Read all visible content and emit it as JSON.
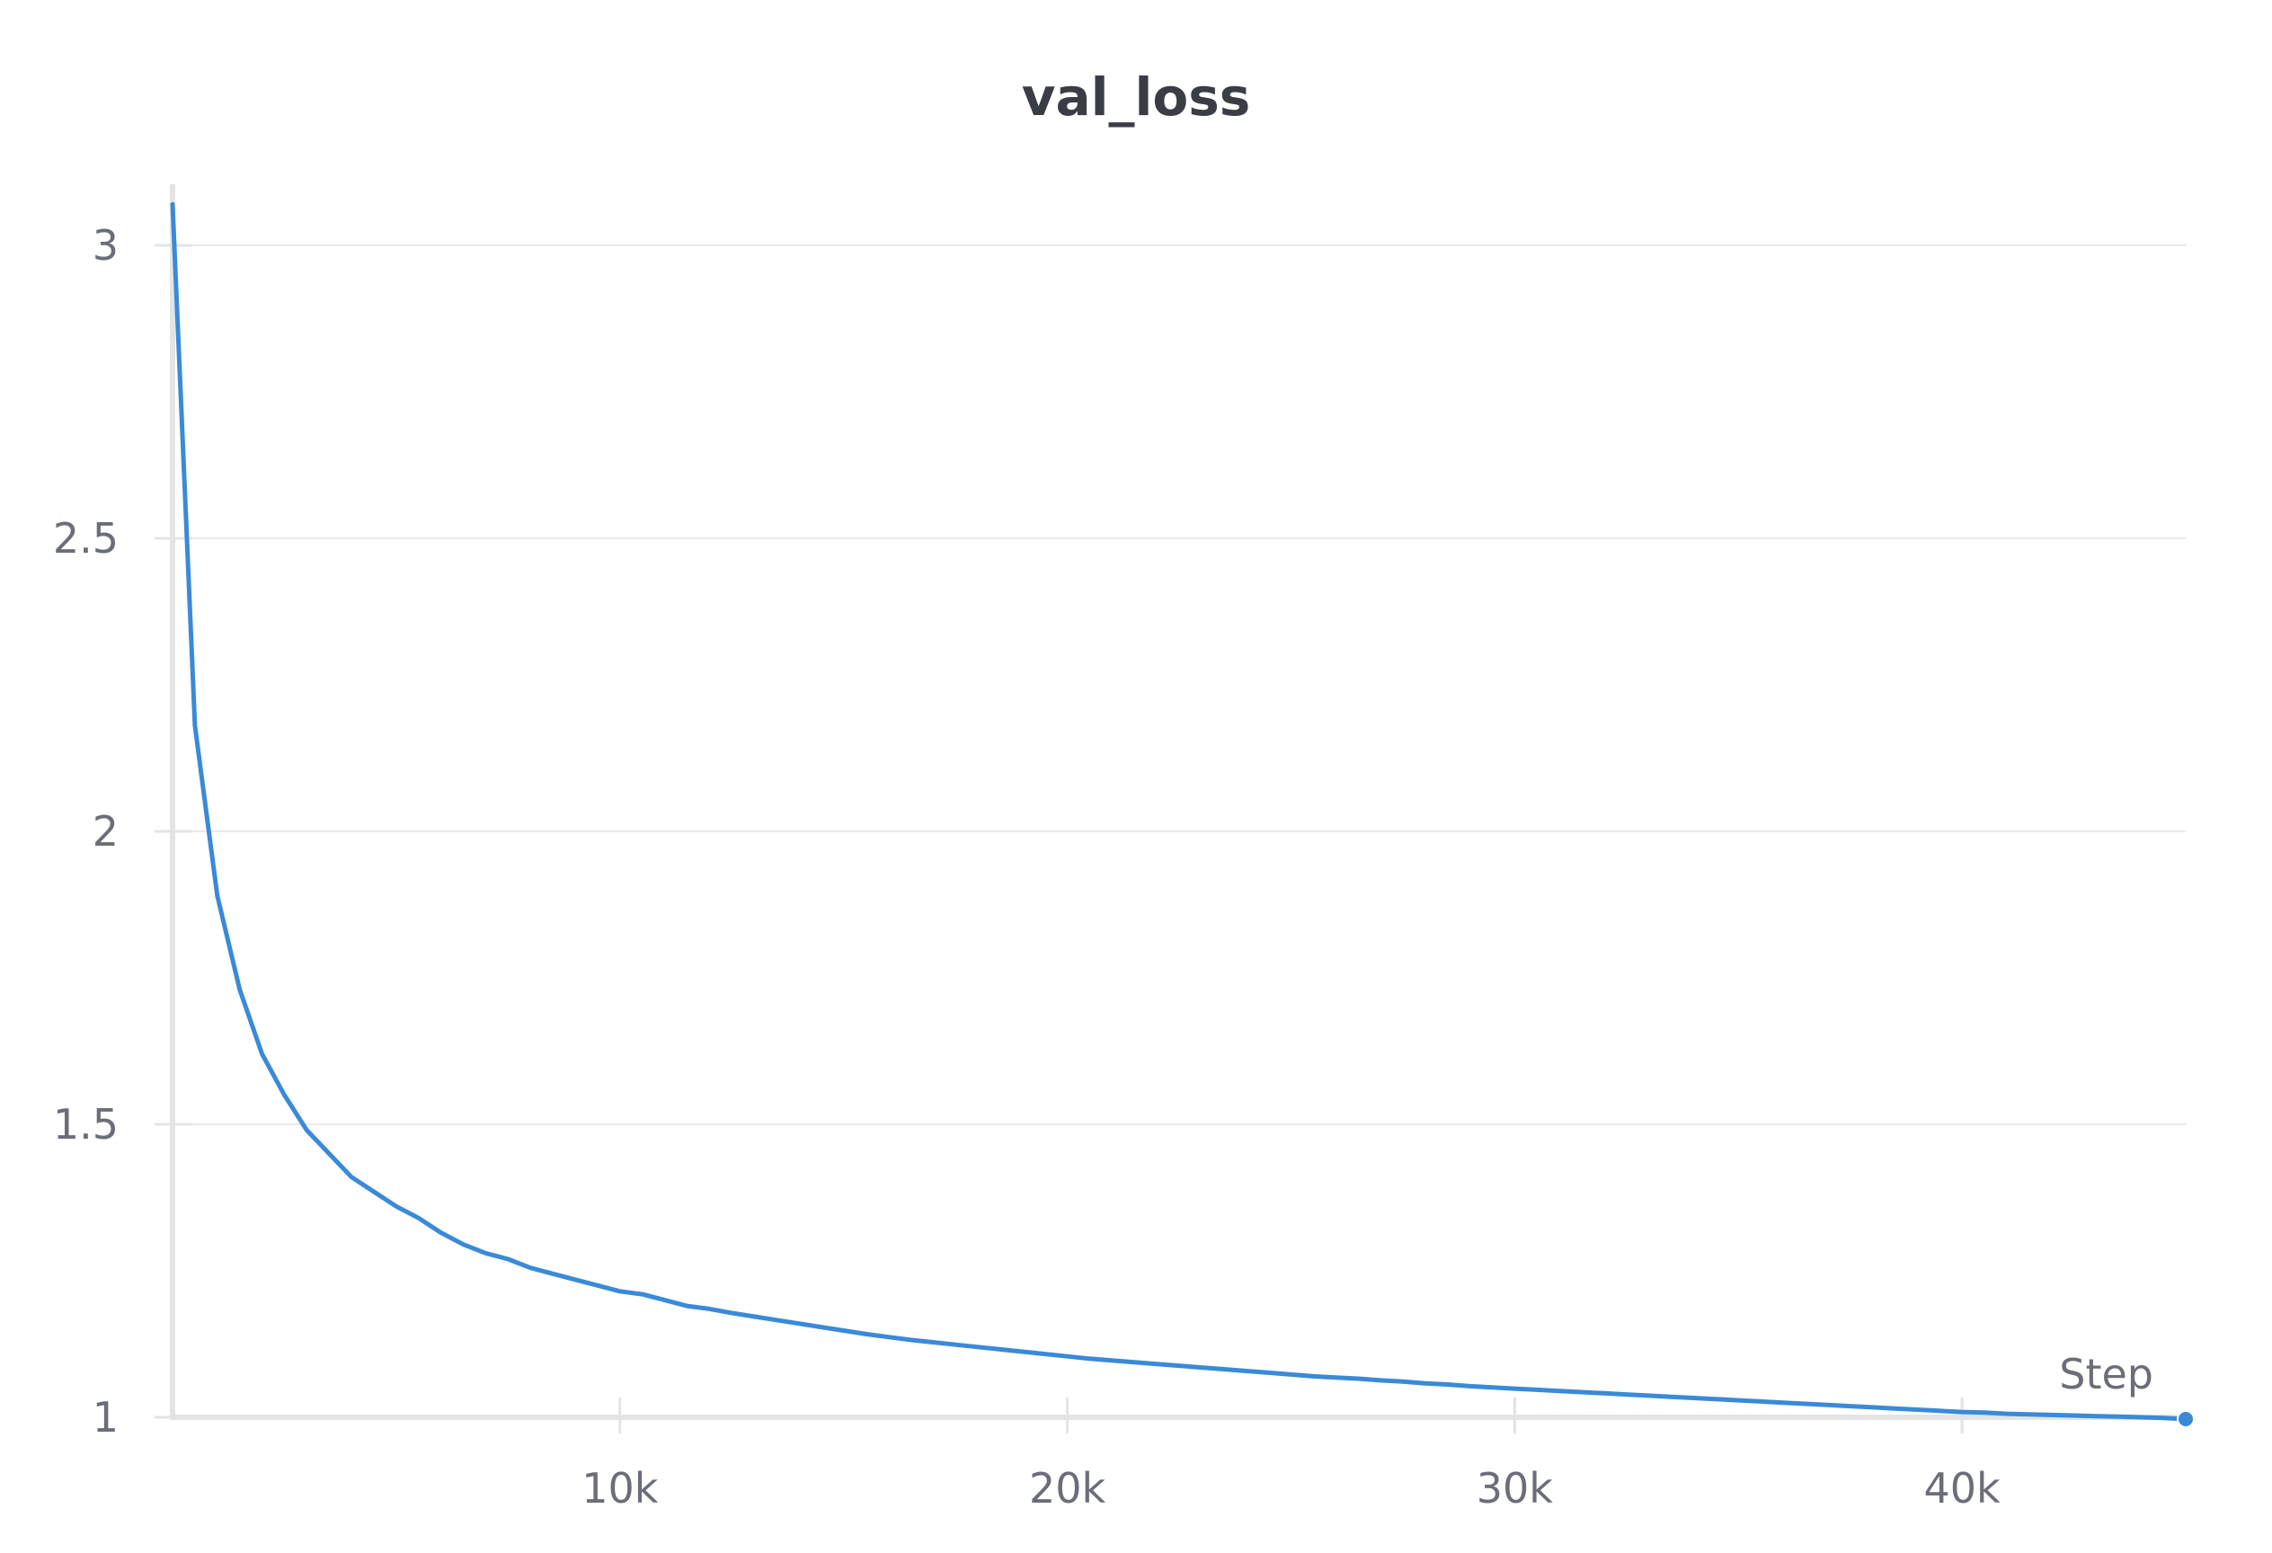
{
  "chart_data": {
    "type": "line",
    "title": "val_loss",
    "xlabel": "Step",
    "ylabel": "",
    "xlim": [
      0,
      45000
    ],
    "ylim": [
      1,
      3.1
    ],
    "x_ticks": [
      {
        "value": 10000,
        "label": "10k"
      },
      {
        "value": 20000,
        "label": "20k"
      },
      {
        "value": 30000,
        "label": "30k"
      },
      {
        "value": 40000,
        "label": "40k"
      }
    ],
    "y_ticks": [
      {
        "value": 1,
        "label": "1"
      },
      {
        "value": 1.5,
        "label": "1.5"
      },
      {
        "value": 2,
        "label": "2"
      },
      {
        "value": 2.5,
        "label": "2.5"
      },
      {
        "value": 3,
        "label": "3"
      }
    ],
    "grid": true,
    "series": [
      {
        "color": "#3a8ad8",
        "x": [
          0,
          500,
          1000,
          1500,
          2000,
          2500,
          3000,
          3500,
          4000,
          4500,
          5000,
          5500,
          6000,
          6500,
          7000,
          7500,
          8000,
          8500,
          9000,
          9500,
          10000,
          10500,
          11000,
          11500,
          12000,
          12500,
          13000,
          13500,
          14000,
          14500,
          15000,
          15500,
          16000,
          16500,
          17000,
          17500,
          18000,
          18500,
          19000,
          19500,
          20000,
          20500,
          21000,
          21500,
          22000,
          22500,
          23000,
          23500,
          24000,
          24500,
          25000,
          25500,
          26000,
          26500,
          27000,
          27500,
          28000,
          28500,
          29000,
          29500,
          30000,
          30500,
          31000,
          31500,
          32000,
          32500,
          33000,
          33500,
          34000,
          34500,
          35000,
          35500,
          36000,
          36500,
          37000,
          37500,
          38000,
          38500,
          39000,
          39500,
          40000,
          40500,
          41000,
          41500,
          42000,
          42500,
          43000,
          43500,
          44000,
          44500,
          45000
        ],
        "values": [
          3.07,
          2.18,
          1.89,
          1.73,
          1.62,
          1.55,
          1.49,
          1.45,
          1.41,
          1.385,
          1.36,
          1.34,
          1.315,
          1.295,
          1.28,
          1.27,
          1.255,
          1.245,
          1.235,
          1.225,
          1.215,
          1.21,
          1.2,
          1.19,
          1.185,
          1.178,
          1.172,
          1.166,
          1.16,
          1.154,
          1.148,
          1.142,
          1.137,
          1.132,
          1.128,
          1.124,
          1.12,
          1.116,
          1.112,
          1.108,
          1.104,
          1.1,
          1.097,
          1.094,
          1.091,
          1.088,
          1.085,
          1.082,
          1.079,
          1.076,
          1.073,
          1.07,
          1.068,
          1.066,
          1.063,
          1.061,
          1.058,
          1.056,
          1.053,
          1.051,
          1.049,
          1.047,
          1.045,
          1.043,
          1.041,
          1.039,
          1.037,
          1.035,
          1.033,
          1.031,
          1.029,
          1.027,
          1.025,
          1.023,
          1.021,
          1.019,
          1.017,
          1.015,
          1.013,
          1.011,
          1.009,
          1.008,
          1.006,
          1.005,
          1.004,
          1.003,
          1.002,
          1.001,
          1.0,
          0.999,
          0.997
        ]
      }
    ]
  }
}
